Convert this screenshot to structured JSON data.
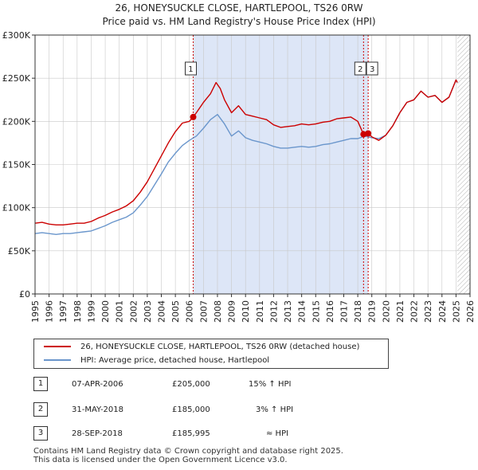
{
  "title_line1": "26, HONEYSUCKLE CLOSE, HARTLEPOOL, TS26 0RW",
  "title_line2": "Price paid vs. HM Land Registry's House Price Index (HPI)",
  "colors": {
    "property": "#cc0000",
    "hpi": "#6a96cc",
    "shade": "#dde6f7",
    "grid": "#c8c8c8",
    "hatch": "#aaaaaa"
  },
  "legend": {
    "property_label": "26, HONEYSUCKLE CLOSE, HARTLEPOOL, TS26 0RW (detached house)",
    "hpi_label": "HPI: Average price, detached house, Hartlepool"
  },
  "transactions": [
    {
      "num": "1",
      "date": "07-APR-2006",
      "price": "£205,000",
      "vs_hpi": "15% ↑ HPI"
    },
    {
      "num": "2",
      "date": "31-MAY-2018",
      "price": "£185,000",
      "vs_hpi": "3% ↑ HPI"
    },
    {
      "num": "3",
      "date": "28-SEP-2018",
      "price": "£185,995",
      "vs_hpi": "≈ HPI"
    }
  ],
  "footer_line1": "Contains HM Land Registry data © Crown copyright and database right 2025.",
  "footer_line2": "This data is licensed under the Open Government Licence v3.0.",
  "chart_data": {
    "type": "line",
    "title": "26, HONEYSUCKLE CLOSE, HARTLEPOOL, TS26 0RW — Price paid vs. HM Land Registry's House Price Index (HPI)",
    "xlabel": "",
    "ylabel": "",
    "xlim": [
      1995,
      2026
    ],
    "ylim": [
      0,
      300000
    ],
    "x_ticks": [
      "1995",
      "1996",
      "1997",
      "1998",
      "1999",
      "2000",
      "2001",
      "2002",
      "2003",
      "2004",
      "2005",
      "2006",
      "2007",
      "2008",
      "2009",
      "2010",
      "2011",
      "2012",
      "2013",
      "2014",
      "2015",
      "2016",
      "2017",
      "2018",
      "2019",
      "2020",
      "2021",
      "2022",
      "2023",
      "2024",
      "2025",
      "2026"
    ],
    "y_ticks": [
      {
        "value": 0,
        "label": "£0"
      },
      {
        "value": 50000,
        "label": "£50K"
      },
      {
        "value": 100000,
        "label": "£100K"
      },
      {
        "value": 150000,
        "label": "£150K"
      },
      {
        "value": 200000,
        "label": "£200K"
      },
      {
        "value": 250000,
        "label": "£250K"
      },
      {
        "value": 300000,
        "label": "£300K"
      }
    ],
    "shaded_ranges": [
      [
        2006.27,
        2018.74
      ]
    ],
    "future_hatch_from": 2025.1,
    "sale_markers": [
      {
        "label": "1",
        "x": 2006.27,
        "y": 205000
      },
      {
        "label": "2",
        "x": 2018.41,
        "y": 185000
      },
      {
        "label": "3",
        "x": 2018.74,
        "y": 185995
      }
    ],
    "series": [
      {
        "name": "26, HONEYSUCKLE CLOSE, HARTLEPOOL, TS26 0RW (detached house)",
        "x": [
          1995,
          1995.5,
          1996,
          1996.5,
          1997,
          1997.5,
          1998,
          1998.5,
          1999,
          1999.5,
          2000,
          2000.5,
          2001,
          2001.5,
          2002,
          2002.5,
          2003,
          2003.5,
          2004,
          2004.5,
          2005,
          2005.5,
          2006,
          2006.27,
          2006.5,
          2007,
          2007.5,
          2007.9,
          2008.2,
          2008.5,
          2009,
          2009.5,
          2010,
          2010.5,
          2011,
          2011.5,
          2012,
          2012.5,
          2013,
          2013.5,
          2014,
          2014.5,
          2015,
          2015.5,
          2016,
          2016.5,
          2017,
          2017.5,
          2018,
          2018.41,
          2018.74,
          2019,
          2019.5,
          2020,
          2020.5,
          2021,
          2021.5,
          2022,
          2022.5,
          2023,
          2023.5,
          2024,
          2024.5,
          2025,
          2025.1
        ],
        "values": [
          82000,
          83000,
          81000,
          80000,
          80000,
          81000,
          82000,
          82000,
          84000,
          88000,
          91000,
          95000,
          98000,
          102000,
          108000,
          118000,
          130000,
          145000,
          160000,
          175000,
          188000,
          198000,
          200000,
          205000,
          210000,
          222000,
          232000,
          245000,
          238000,
          225000,
          210000,
          218000,
          208000,
          206000,
          204000,
          202000,
          196000,
          193000,
          194000,
          195000,
          197000,
          196000,
          197000,
          199000,
          200000,
          203000,
          204000,
          205000,
          200000,
          185000,
          185995,
          182000,
          178000,
          184000,
          195000,
          210000,
          222000,
          225000,
          235000,
          228000,
          230000,
          222000,
          228000,
          248000,
          245000
        ]
      },
      {
        "name": "HPI: Average price, detached house, Hartlepool",
        "x": [
          1995,
          1995.5,
          1996,
          1996.5,
          1997,
          1997.5,
          1998,
          1998.5,
          1999,
          1999.5,
          2000,
          2000.5,
          2001,
          2001.5,
          2002,
          2002.5,
          2003,
          2003.5,
          2004,
          2004.5,
          2005,
          2005.5,
          2006,
          2006.5,
          2007,
          2007.5,
          2008,
          2008.5,
          2009,
          2009.5,
          2010,
          2010.5,
          2011,
          2011.5,
          2012,
          2012.5,
          2013,
          2013.5,
          2014,
          2014.5,
          2015,
          2015.5,
          2016,
          2016.5,
          2017,
          2017.5,
          2018,
          2018.5,
          2019,
          2019.5,
          2020,
          2020.5,
          2021,
          2021.5,
          2022,
          2022.5,
          2023,
          2023.5,
          2024,
          2024.5,
          2025,
          2025.1
        ],
        "values": [
          70000,
          71000,
          70000,
          69000,
          70000,
          70000,
          71000,
          72000,
          73000,
          76000,
          79000,
          83000,
          86000,
          89000,
          94000,
          103000,
          113000,
          126000,
          139000,
          153000,
          163000,
          172000,
          178000,
          183000,
          192000,
          202000,
          208000,
          197000,
          183000,
          189000,
          181000,
          178000,
          176000,
          174000,
          171000,
          169000,
          169000,
          170000,
          171000,
          170000,
          171000,
          173000,
          174000,
          176000,
          178000,
          180000,
          180000,
          183000,
          181000,
          180000,
          184000,
          195000,
          210000,
          222000,
          225000,
          235000,
          228000,
          230000,
          222000,
          228000,
          248000,
          245000
        ]
      }
    ]
  }
}
